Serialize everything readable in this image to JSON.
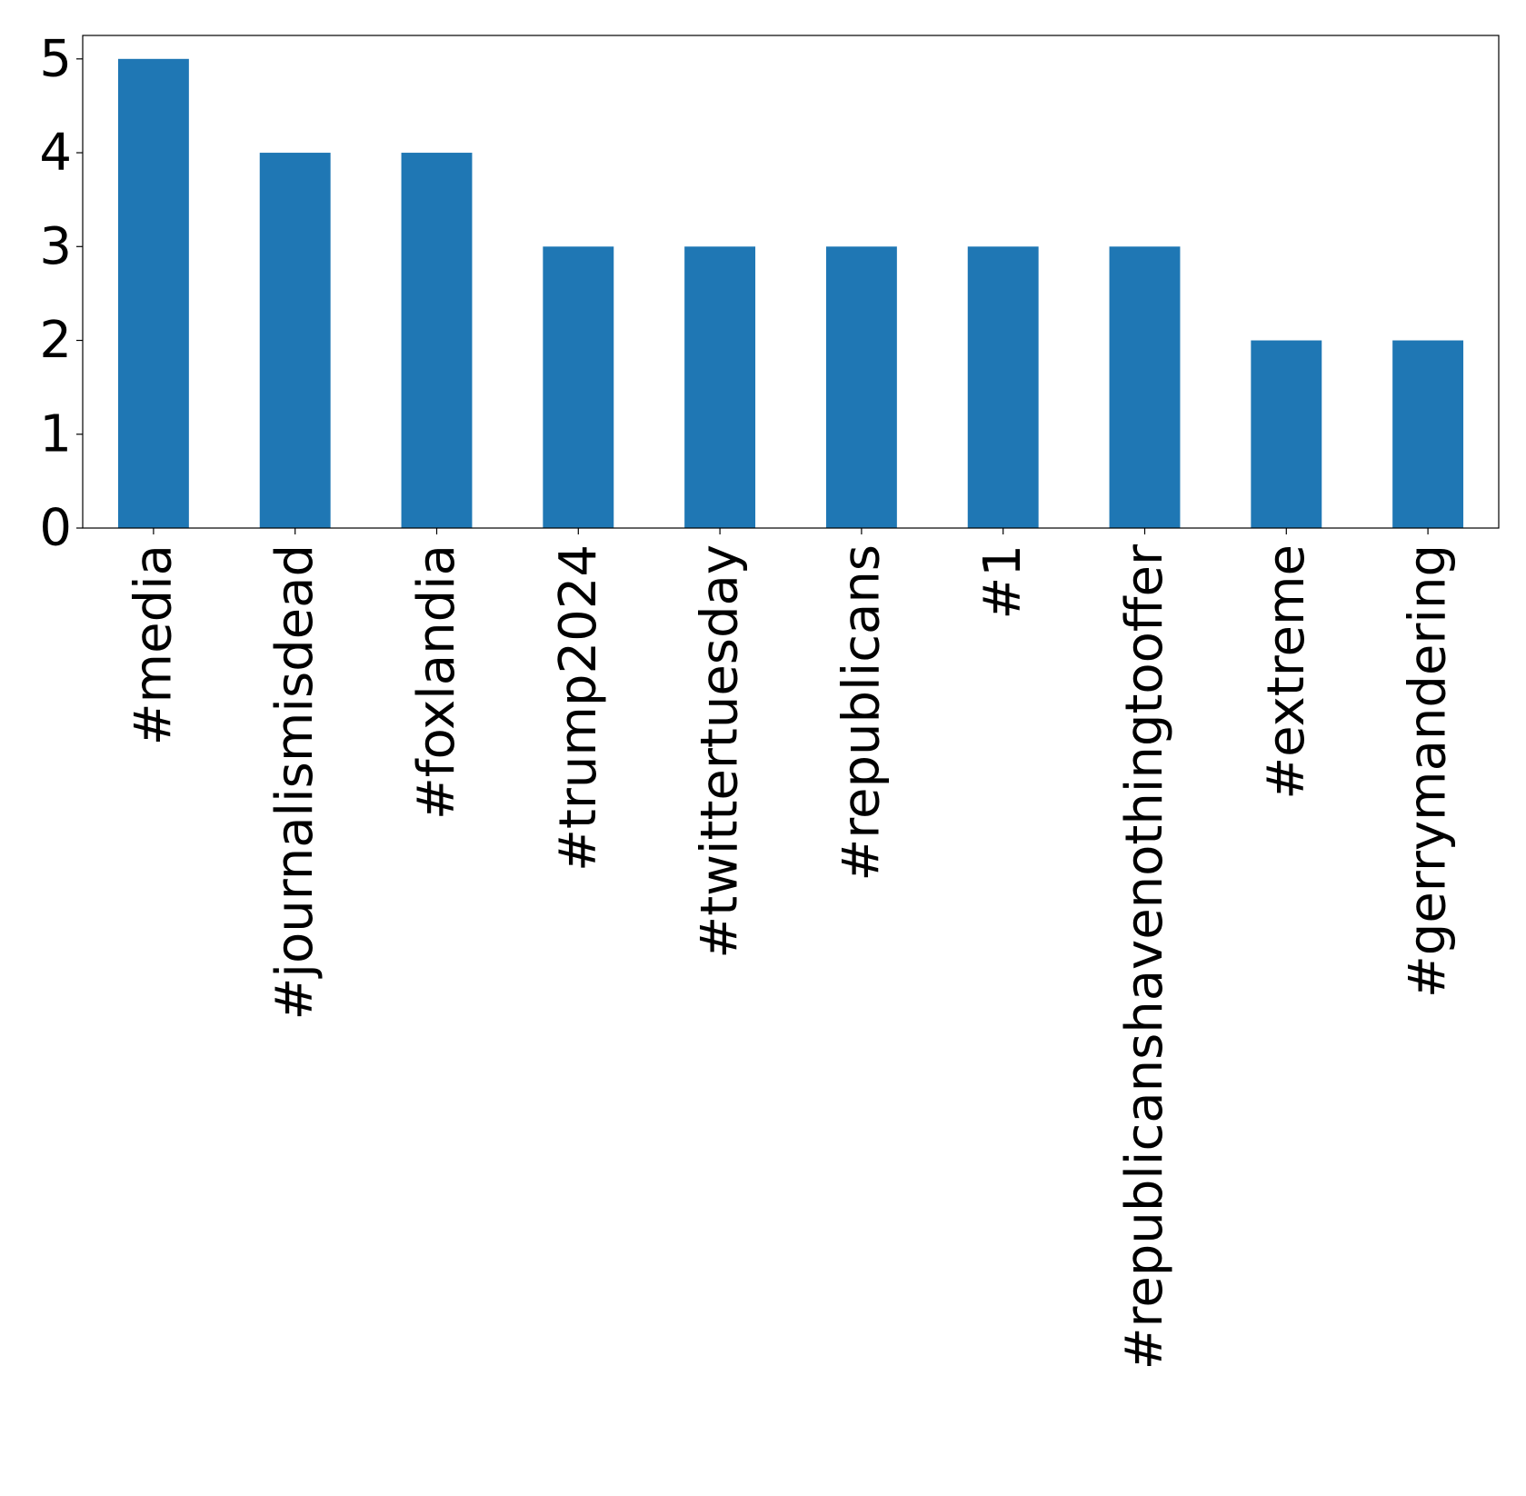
{
  "chart_data": {
    "type": "bar",
    "title": "",
    "xlabel": "",
    "ylabel": "",
    "categories": [
      "#media",
      "#journalismisdead",
      "#foxlandia",
      "#trump2024",
      "#twittertuesday",
      "#republicans",
      "#1",
      "#republicanshavenothingtooffer",
      "#extreme",
      "#gerrymandering"
    ],
    "values": [
      5,
      4,
      4,
      3,
      3,
      3,
      3,
      3,
      2,
      2
    ],
    "ylim": [
      0,
      5.25
    ],
    "yticks": [
      "0",
      "1",
      "2",
      "3",
      "4",
      "5"
    ],
    "bar_color": "#1f77b4",
    "grid": false,
    "legend": "none"
  }
}
